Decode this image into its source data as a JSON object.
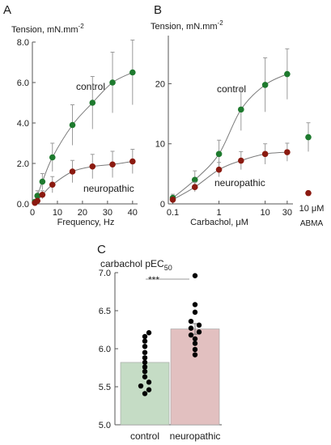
{
  "panels": {
    "A": {
      "letter": "A"
    },
    "B": {
      "letter": "B"
    },
    "C": {
      "letter": "C"
    }
  },
  "chart_data": [
    {
      "panel": "A",
      "type": "line",
      "ylabel_prefix": "Tension, mN.mm",
      "ylabel_sup": "-2",
      "xlabel": "Frequency, Hz",
      "xlim": [
        0,
        42
      ],
      "ylim": [
        0,
        8
      ],
      "xticks": [
        0,
        10,
        20,
        30,
        40
      ],
      "yticks": [
        0,
        2,
        4,
        6,
        8
      ],
      "ytick_labels": [
        "0.0",
        "2.0",
        "4.0",
        "6.0",
        "8.0"
      ],
      "series": [
        {
          "name": "control",
          "color": "#1e7a2e",
          "x": [
            1,
            2,
            4,
            8,
            16,
            24,
            32,
            40
          ],
          "y": [
            0.1,
            0.4,
            1.1,
            2.3,
            3.9,
            5.0,
            6.0,
            6.5
          ],
          "err": [
            0.1,
            0.25,
            0.4,
            0.7,
            1.0,
            1.3,
            1.5,
            1.6
          ]
        },
        {
          "name": "neuropathic",
          "color": "#8b1a10",
          "x": [
            1,
            2,
            4,
            8,
            16,
            24,
            32,
            40
          ],
          "y": [
            0.05,
            0.15,
            0.45,
            0.95,
            1.6,
            1.85,
            1.95,
            2.1
          ],
          "err": [
            0.05,
            0.1,
            0.2,
            0.4,
            0.55,
            0.6,
            0.65,
            0.6
          ]
        }
      ],
      "annotations": [
        "control",
        "neuropathic"
      ]
    },
    {
      "panel": "B",
      "type": "line",
      "xscale": "log",
      "ylabel_prefix": "Tension, mN.mm",
      "ylabel_sup": "-2",
      "xlabel": "Carbachol, μM",
      "xlim": [
        0.08,
        40
      ],
      "ylim": [
        0,
        28
      ],
      "xticks": [
        0.1,
        1,
        10,
        30
      ],
      "xtick_labels": [
        "0.1",
        "1",
        "10",
        "30"
      ],
      "yticks": [
        0,
        10,
        20
      ],
      "ytick_labels": [
        "0",
        "10",
        "20"
      ],
      "series": [
        {
          "name": "control",
          "color": "#1e7a2e",
          "x": [
            0.1,
            0.3,
            1,
            3,
            10,
            30
          ],
          "y": [
            1.0,
            4.0,
            8.3,
            15.7,
            19.8,
            21.6
          ],
          "err": [
            0.6,
            1.5,
            2.3,
            3.5,
            4.5,
            4.2
          ]
        },
        {
          "name": "neuropathic",
          "color": "#8b1a10",
          "x": [
            0.1,
            0.3,
            1,
            3,
            10,
            30
          ],
          "y": [
            0.7,
            2.8,
            5.7,
            7.2,
            8.3,
            8.6
          ],
          "err": [
            0.3,
            0.8,
            1.2,
            1.5,
            1.7,
            1.5
          ]
        }
      ],
      "abma": {
        "label_top": "10 μM",
        "label_bottom": "ABMA",
        "control": {
          "y": 11.1,
          "err": 2.4
        },
        "neuropathic": {
          "y": 1.8,
          "err": 0.3
        }
      },
      "annotations": [
        "control",
        "neuropathic"
      ]
    },
    {
      "panel": "C",
      "type": "bar",
      "ylabel_prefix": "carbachol pEC",
      "ylabel_sub": "50",
      "ylim": [
        5.0,
        7.0
      ],
      "yticks": [
        5.0,
        5.5,
        6.0,
        6.5,
        7.0
      ],
      "ytick_labels": [
        "5.0",
        "5.5",
        "6.0",
        "6.5",
        "7.0"
      ],
      "categories": [
        "control",
        "neuropathic"
      ],
      "values": [
        5.82,
        6.26
      ],
      "errors": [
        0.08,
        0.07
      ],
      "bar_colors": [
        "#c5dcc5",
        "#e2c0c0"
      ],
      "points": [
        [
          5.41,
          5.46,
          5.51,
          5.56,
          5.63,
          5.7,
          5.76,
          5.82,
          5.88,
          5.95,
          6.03,
          6.1,
          6.16,
          6.21
        ],
        [
          5.92,
          5.99,
          6.07,
          6.13,
          6.18,
          6.22,
          6.27,
          6.31,
          6.36,
          6.48,
          6.58,
          6.96
        ]
      ],
      "significance": "***"
    }
  ]
}
